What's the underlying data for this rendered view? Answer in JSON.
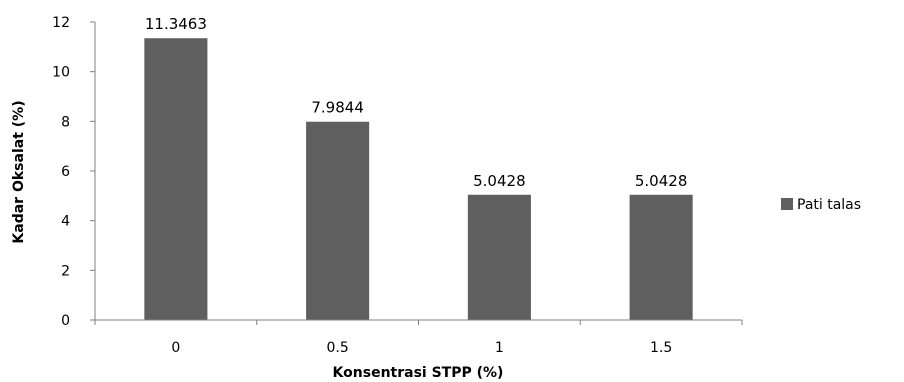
{
  "chart_data": {
    "type": "bar",
    "title": "",
    "xlabel": "Konsentrasi STPP (%)",
    "ylabel": "Kadar Oksalat (%)",
    "categories": [
      "0",
      "0.5",
      "1",
      "1.5"
    ],
    "series": [
      {
        "name": "Pati talas",
        "values": [
          11.3463,
          7.9844,
          5.0428,
          5.0428
        ],
        "labels": [
          "11.3463",
          "7.9844",
          "5.0428",
          "5.0428"
        ],
        "color": "#5f5f5f"
      }
    ],
    "ylim": [
      0,
      12
    ],
    "yticks": [
      "0",
      "2",
      "4",
      "6",
      "8",
      "10",
      "12"
    ],
    "grid": false,
    "legend_position": "right"
  }
}
